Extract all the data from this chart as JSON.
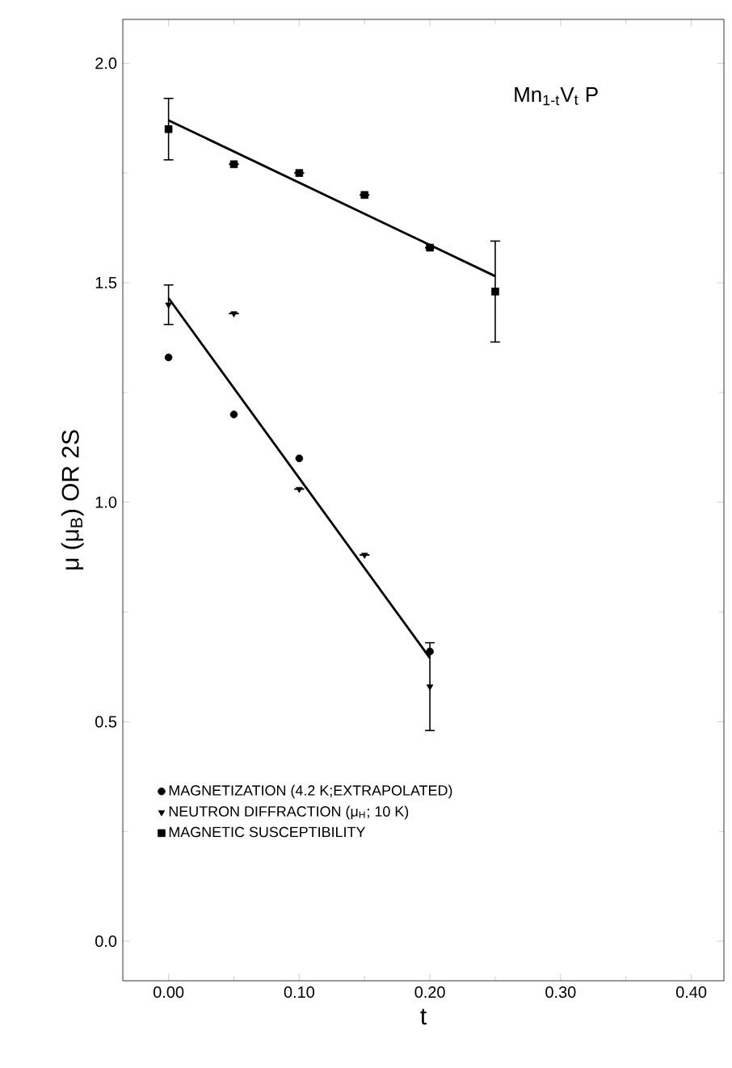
{
  "chart_data": {
    "type": "scatter",
    "xlabel": "t",
    "ylabel": "μ (μ$_{B}$) OR 2S",
    "annotations": [
      "Mn$_{1-t}$V$_{t}$ P"
    ],
    "xlim": [
      -0.035,
      0.425
    ],
    "ylim": [
      -0.09,
      2.1
    ],
    "xticks": [
      {
        "value": 0,
        "label": "0.00"
      },
      {
        "value": 0.1,
        "label": "0.10"
      },
      {
        "value": 0.2,
        "label": "0.20"
      },
      {
        "value": 0.3,
        "label": "0.30"
      },
      {
        "value": 0.4,
        "label": "0.40"
      }
    ],
    "yticks": [
      {
        "value": 0,
        "label": "0.0"
      },
      {
        "value": 0.5,
        "label": "0.5"
      },
      {
        "value": 1,
        "label": "1.0"
      },
      {
        "value": 1.5,
        "label": "1.5"
      },
      {
        "value": 2,
        "label": "2.0"
      }
    ],
    "legend": "bottom left",
    "grid": false,
    "series": [
      {
        "name": "MAGNETIZATION (4.2 K;EXTRAPOLATED)",
        "color": "#000000",
        "marker": "circle",
        "x": [
          0,
          0.05,
          0.1,
          0.2
        ],
        "values": [
          1.33,
          1.2,
          1.1,
          0.66
        ]
      },
      {
        "name": "NEUTRON DIFFRACTION (μ$_{H}$; 10 K)",
        "color": "#000000",
        "marker": "triangle",
        "x": [
          0,
          0.05,
          0.1,
          0.15,
          0.2
        ],
        "values": [
          1.45,
          1.43,
          1.03,
          0.88,
          0.58
        ],
        "errors": [
          0.045,
          null,
          null,
          null,
          0.1
        ]
      },
      {
        "name": "MAGNETIC SUSCEPTIBILITY",
        "color": "#000000",
        "marker": "square",
        "x": [
          0,
          0.05,
          0.1,
          0.15,
          0.2,
          0.25
        ],
        "values": [
          1.85,
          1.77,
          1.75,
          1.7,
          1.58,
          1.48
        ],
        "errors": [
          0.07,
          null,
          null,
          null,
          null,
          0.115
        ]
      },
      {
        "type": "line",
        "color": "#000000",
        "marker": "none",
        "x": [
          0,
          0.25
        ],
        "values": [
          1.87,
          1.515
        ]
      },
      {
        "type": "line",
        "color": "#000000",
        "marker": "none",
        "x": [
          0,
          0.2
        ],
        "values": [
          1.465,
          0.645
        ]
      }
    ]
  }
}
